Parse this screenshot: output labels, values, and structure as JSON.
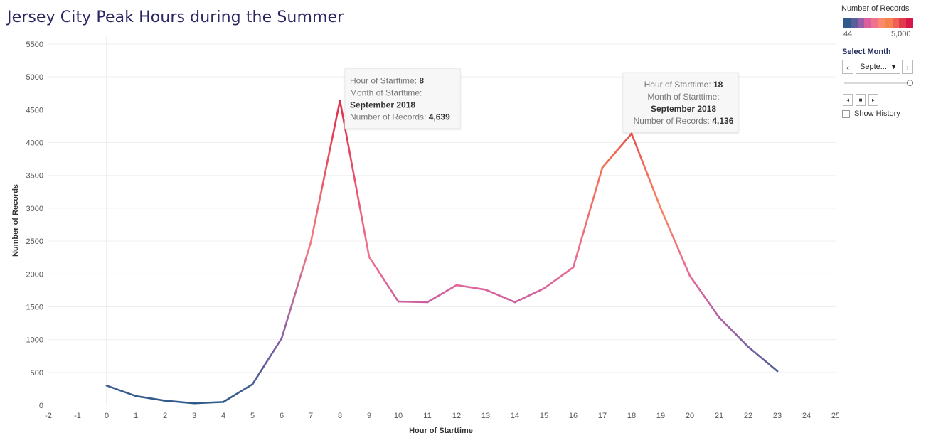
{
  "title": "Jersey City Peak Hours during the Summer",
  "chart_data": {
    "type": "line",
    "xlabel": "Hour of Starttime",
    "ylabel": "Number of Records",
    "xlim": [
      -2,
      25
    ],
    "ylim": [
      0,
      5500
    ],
    "x_ticks": [
      -2,
      -1,
      0,
      1,
      2,
      3,
      4,
      5,
      6,
      7,
      8,
      9,
      10,
      11,
      12,
      13,
      14,
      15,
      16,
      17,
      18,
      19,
      20,
      21,
      22,
      23,
      24,
      25
    ],
    "y_ticks": [
      0,
      500,
      1000,
      1500,
      2000,
      2500,
      3000,
      3500,
      4000,
      4500,
      5000,
      5500
    ],
    "x": [
      0,
      1,
      2,
      3,
      4,
      5,
      6,
      7,
      8,
      9,
      10,
      11,
      12,
      13,
      14,
      15,
      16,
      17,
      18,
      19,
      20,
      21,
      22,
      23
    ],
    "values": [
      300,
      140,
      70,
      30,
      50,
      320,
      1020,
      2480,
      4639,
      2260,
      1580,
      1570,
      1830,
      1760,
      1570,
      1780,
      2100,
      3620,
      4136,
      3000,
      1970,
      1340,
      890,
      520
    ],
    "color_scale": {
      "min": 44,
      "max": 5000,
      "colors": [
        "#2e5b8a",
        "#5a5f9c",
        "#9a5ea8",
        "#d95f9e",
        "#f0728e",
        "#f98a6e",
        "#f5834d",
        "#ee6055",
        "#e23a4c",
        "#d51849"
      ]
    },
    "tooltips": [
      {
        "x": 8,
        "hour_label": "Hour of Starttime:",
        "hour_value": "8",
        "month_label": "Month of Starttime:",
        "month_value": "September 2018",
        "records_label": "Number of Records:",
        "records_value": "4,639"
      },
      {
        "x": 18,
        "hour_label": "Hour of Starttime:",
        "hour_value": "18",
        "month_label": "Month of Starttime:",
        "month_value": "September 2018",
        "records_label": "Number of Records:",
        "records_value": "4,136"
      }
    ],
    "grid": true
  },
  "legend": {
    "title": "Number of Records",
    "min_label": "44",
    "max_label": "5,000"
  },
  "filter": {
    "title": "Select Month",
    "selected": "Septe...",
    "prev_icon": "‹",
    "next_icon": "›",
    "back_icon": "◂",
    "stop_icon": "■",
    "forward_icon": "▸",
    "show_history_label": "Show History"
  }
}
